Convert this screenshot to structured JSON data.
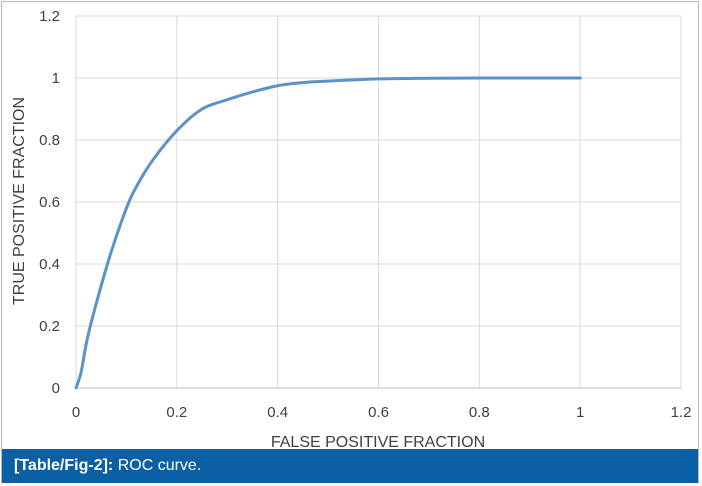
{
  "chart_data": {
    "type": "line",
    "title": "",
    "xlabel": "FALSE POSITIVE FRACTION",
    "ylabel": "TRUE POSITIVE FRACTION",
    "xlim": [
      0,
      1.2
    ],
    "ylim": [
      0,
      1.2
    ],
    "xticks": [
      "0",
      "0.2",
      "0.4",
      "0.6",
      "0.8",
      "1",
      "1.2"
    ],
    "yticks": [
      "0",
      "0.2",
      "0.4",
      "0.6",
      "0.8",
      "1",
      "1.2"
    ],
    "grid": true,
    "legend": "none",
    "series": [
      {
        "color": "#5b92c8",
        "x": [
          0,
          0.01,
          0.02,
          0.03,
          0.05,
          0.07,
          0.1,
          0.12,
          0.15,
          0.2,
          0.25,
          0.3,
          0.35,
          0.4,
          0.45,
          0.5,
          0.6,
          0.7,
          0.8,
          0.9,
          1
        ],
        "y": [
          0,
          0.05,
          0.14,
          0.21,
          0.33,
          0.44,
          0.58,
          0.65,
          0.73,
          0.83,
          0.9,
          0.93,
          0.955,
          0.975,
          0.985,
          0.99,
          0.997,
          0.999,
          1,
          1,
          1
        ]
      }
    ]
  },
  "caption": {
    "ref": "[Table/Fig-2]:",
    "text": "ROC curve."
  }
}
